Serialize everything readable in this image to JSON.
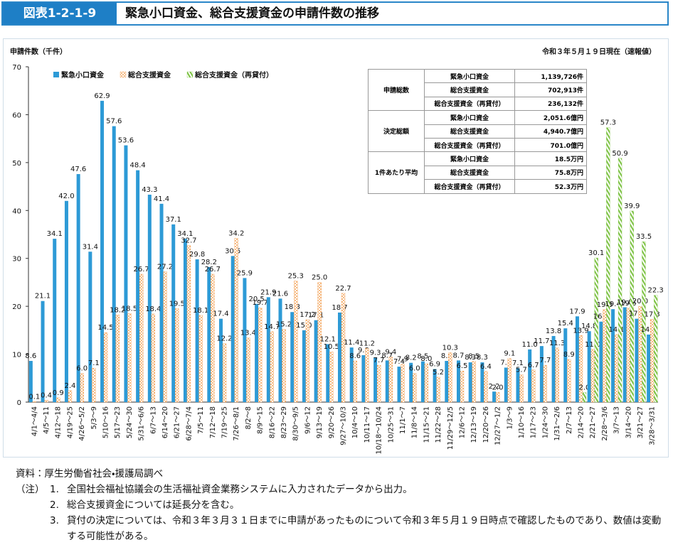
{
  "header": {
    "figure_no": "図表1-2-1-9",
    "title": "緊急小口資金、総合支援資金の申請件数の推移"
  },
  "chart_data": {
    "type": "bar",
    "y_label": "申請件数（千件）",
    "note": "令和３年５月１９日現在（速報値）",
    "categories": [
      "4/1～4/4",
      "4/5～11",
      "4/12～18",
      "4/19～25",
      "4/26～5/2",
      "5/3～9",
      "5/10～16",
      "5/17～23",
      "5/24～30",
      "5/31～6/6",
      "6/7～13",
      "6/14～20",
      "6/21～27",
      "6/28～7/4",
      "7/5～11",
      "7/12～18",
      "7/19～25",
      "7/26～8/1",
      "8/2～8",
      "8/9～15",
      "8/16～22",
      "8/23～29",
      "8/30～9/5",
      "9/6～12",
      "9/13～19",
      "9/20～26",
      "9/27～10/3",
      "10/4～10",
      "10/11～17",
      "10/18～10/24",
      "10/25～31",
      "11/1～7",
      "11/8～14",
      "11/15～21",
      "11/22～28",
      "11/29～12/5",
      "12/6～12",
      "12/13～19",
      "12/20～26",
      "12/27～1/2",
      "1/3～9",
      "1/10～16",
      "1/17～23",
      "1/24～30",
      "1/31～2/6",
      "2/7～13",
      "2/14～20",
      "2/21～27",
      "2/28～3/6",
      "3/7～13",
      "3/14～20",
      "3/21～27",
      "3/28～3/31"
    ],
    "series": [
      {
        "name": "緊急小口資金",
        "color": "#2d9ad6",
        "pattern": "solid",
        "values": [
          8.6,
          21.1,
          34.1,
          42.0,
          47.6,
          31.4,
          62.9,
          57.6,
          53.6,
          48.4,
          43.3,
          41.4,
          37.1,
          34.1,
          29.8,
          28.2,
          17.4,
          30.5,
          25.9,
          20.5,
          21.9,
          21.6,
          18.8,
          15.0,
          17.1,
          12.1,
          18.7,
          11.4,
          9.8,
          9.3,
          8.7,
          7.4,
          8.2,
          8.5,
          6.9,
          8.6,
          8.7,
          8.3,
          8.3,
          2.2,
          7.2,
          7.1,
          11.0,
          11.7,
          13.8,
          15.4,
          17.9,
          14.8,
          16.8,
          19.4,
          19.8,
          17.4,
          14.1
        ],
        "value_labels": [
          "8.6",
          "21.1",
          "34.1",
          "42.0",
          "47.6",
          "31.4",
          "62.9",
          "57.6",
          "53.6",
          "48.4",
          "43.3",
          "41.4",
          "37.1",
          "34.1",
          "29.8",
          "28.2",
          "17.4",
          "30.5",
          "25.9",
          "20.5",
          "21.9",
          "21.6",
          "18.8",
          "15.0",
          "17.1",
          "12.1",
          "18.7",
          "11.4",
          "9.8",
          "9.3",
          "8.7",
          "7.4",
          "8.2",
          "8.5",
          "6.9",
          "8.6",
          "8.7",
          "8.3",
          "8.3",
          "2.2",
          "7.2",
          "7.1",
          "11.0",
          "11.7",
          "13.8",
          "15.4",
          "17.9",
          "14.8",
          "16.8",
          "19.4",
          "19.8",
          "17.4",
          "14.1"
        ]
      },
      {
        "name": "総合支援資金",
        "color": "#f0882a",
        "pattern": "dots",
        "values": [
          0.1,
          0.4,
          0.9,
          2.4,
          6.0,
          7.1,
          14.5,
          18.2,
          18.5,
          26.7,
          18.4,
          27.2,
          19.5,
          32.7,
          18.1,
          26.7,
          12.2,
          34.2,
          13.4,
          19.7,
          14.7,
          15.2,
          25.3,
          17.2,
          25.0,
          10.5,
          22.7,
          8.6,
          11.2,
          7.7,
          9.4,
          7.9,
          6.0,
          8.0,
          5.2,
          10.3,
          6.5,
          8.5,
          6.4,
          2.0,
          9.1,
          5.7,
          6.7,
          7.7,
          11.3,
          8.9,
          13.9,
          11.0,
          19.3,
          14.1,
          19.6,
          20.0,
          17.3
        ],
        "value_labels": [
          "0.1",
          "0.4",
          "0.9",
          "2.4",
          "6.0",
          "7.1",
          "14.5",
          "18.2",
          "18.5",
          "26.7",
          "18.4",
          "27.2",
          "19.5",
          "32.7",
          "18.1",
          "26.7",
          "12.2",
          "34.2",
          "13.4",
          "19.7",
          "14.7",
          "15.2",
          "25.3",
          "17.2",
          "25.0",
          "10.5",
          "22.7",
          "8.6",
          "11.2",
          "7.7",
          "9.4",
          "7.9",
          "6.0",
          "8.0",
          "5.2",
          "10.3",
          "6.5",
          "8.5",
          "6.4",
          "2.0",
          "9.1",
          "5.7",
          "6.7",
          "7.7",
          "11.3",
          "8.9",
          "13.9",
          "11.0",
          "19.3",
          "14.1",
          "19.6",
          "20.0",
          "17.3"
        ]
      },
      {
        "name": "総合支援資金（再貸付）",
        "color": "#7cc242",
        "pattern": "hatch",
        "values": [
          null,
          null,
          null,
          null,
          null,
          null,
          null,
          null,
          null,
          null,
          null,
          null,
          null,
          null,
          null,
          null,
          null,
          null,
          null,
          null,
          null,
          null,
          null,
          null,
          null,
          null,
          null,
          null,
          null,
          null,
          null,
          null,
          null,
          null,
          null,
          null,
          null,
          null,
          null,
          null,
          null,
          null,
          null,
          null,
          null,
          null,
          2.0,
          30.1,
          57.3,
          50.9,
          39.9,
          33.5,
          22.3
        ],
        "value_labels": [
          null,
          null,
          null,
          null,
          null,
          null,
          null,
          null,
          null,
          null,
          null,
          null,
          null,
          null,
          null,
          null,
          null,
          null,
          null,
          null,
          null,
          null,
          null,
          null,
          null,
          null,
          null,
          null,
          null,
          null,
          null,
          null,
          null,
          null,
          null,
          null,
          null,
          null,
          null,
          null,
          null,
          null,
          null,
          null,
          null,
          null,
          "2.0",
          "30.1",
          "57.3",
          "50.9",
          "39.9",
          "33.5",
          "22.3"
        ]
      }
    ],
    "ylim": [
      0,
      70
    ],
    "yticks": [
      0,
      10,
      20,
      30,
      40,
      50,
      60,
      70
    ],
    "grid": false,
    "legend": "upper left"
  },
  "table": {
    "groups": [
      {
        "label": "申請総数",
        "rows": [
          [
            "緊急小口資金",
            "1,139,726件"
          ],
          [
            "総合支援資金",
            "702,913件"
          ],
          [
            "総合支援資金（再貸付）",
            "236,132件"
          ]
        ]
      },
      {
        "label": "決定総額",
        "rows": [
          [
            "緊急小口資金",
            "2,051.6億円"
          ],
          [
            "総合支援資金",
            "4,940.7億円"
          ],
          [
            "総合支援資金（再貸付）",
            "701.0億円"
          ]
        ]
      },
      {
        "label": "1件あたり平均",
        "rows": [
          [
            "緊急小口資金",
            "18.5万円"
          ],
          [
            "総合支援資金",
            "75.8万円"
          ],
          [
            "総合支援資金（再貸付）",
            "52.3万円"
          ]
        ]
      }
    ]
  },
  "notes": {
    "source": "資料：厚生労働省社会・援護局調べ",
    "label": "（注）",
    "items": [
      {
        "no": "1.",
        "text": "全国社会福祉協議会の生活福祉資金業務システムに入力されたデータから出力。"
      },
      {
        "no": "2.",
        "text": "総合支援資金については延長分を含む。"
      },
      {
        "no": "3.",
        "text": "貸付の決定については、令和３年３月３１日までに申請があったものについて令和３年５月１９日時点で確認したものであり、数値は変動する可能性がある。"
      }
    ]
  }
}
